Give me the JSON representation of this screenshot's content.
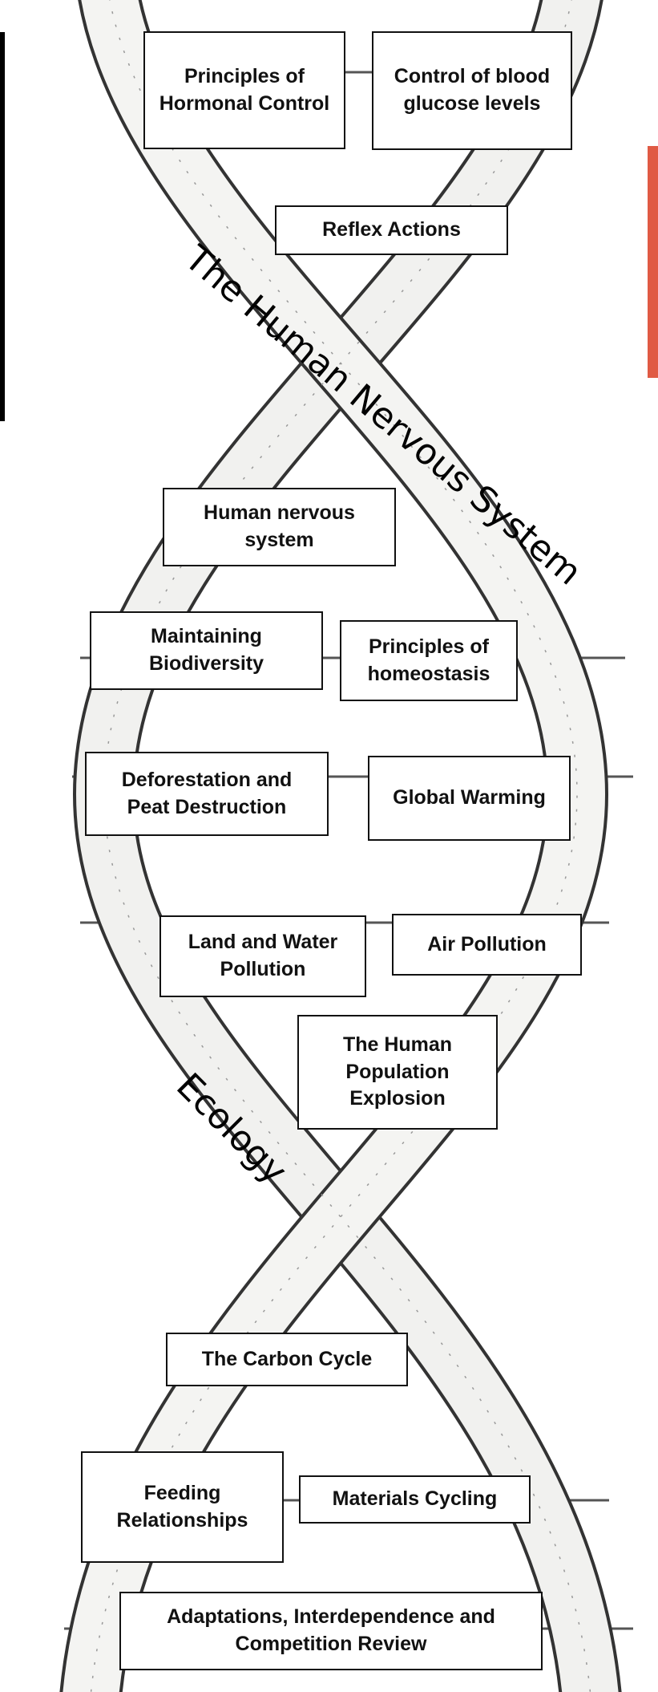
{
  "sections": [
    {
      "label": "The Human Nervous System"
    },
    {
      "label": "Ecology"
    }
  ],
  "nodes": [
    {
      "label": "Principles of Hormonal Control"
    },
    {
      "label": "Control of blood glucose levels"
    },
    {
      "label": "Reflex Actions"
    },
    {
      "label": "Human nervous system"
    },
    {
      "label": "Maintaining Biodiversity"
    },
    {
      "label": "Principles of homeostasis"
    },
    {
      "label": "Deforestation and Peat Destruction"
    },
    {
      "label": "Global Warming"
    },
    {
      "label": "Land and Water Pollution"
    },
    {
      "label": "Air Pollution"
    },
    {
      "label": "The Human Population Explosion"
    },
    {
      "label": "The Carbon Cycle"
    },
    {
      "label": "Feeding Relationships"
    },
    {
      "label": "Materials Cycling"
    },
    {
      "label": "Adaptations, Interdependence and Competition Review"
    }
  ]
}
